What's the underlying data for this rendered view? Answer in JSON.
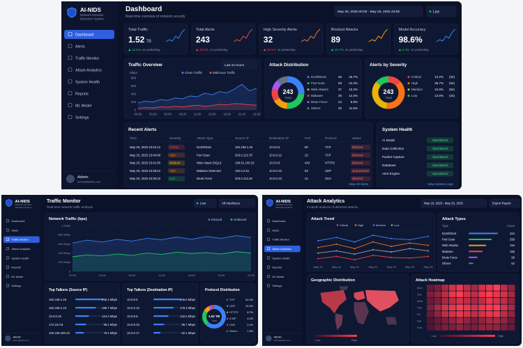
{
  "app": {
    "brand": "AI-NIDS",
    "brand_sub": [
      "Network Intrusion",
      "Detection System"
    ],
    "nav": [
      "Dashboard",
      "Alerts",
      "Traffic Monitor",
      "Attack Analytics",
      "System Health",
      "Reports",
      "ML Model",
      "Settings"
    ],
    "user": {
      "name": "Admin",
      "email": "admin@aitids.com"
    }
  },
  "dashboard": {
    "active_nav": 0,
    "title": "Dashboard",
    "subtitle": "Real-time overview of network security",
    "date_range": "May 25, 2025 00:00 - May 25, 2025 23:59",
    "live": "Live",
    "kpis": [
      {
        "label": "Total Traffic",
        "value": 1.52,
        "unit": "TB",
        "change": "12.5%",
        "note": "vs yesterday",
        "change_color": "#22c55e",
        "accent": "#3b82f6"
      },
      {
        "label": "Total Alerts",
        "value": 243,
        "change": "18.3%",
        "note": "vs yesterday",
        "change_color": "#ef4444",
        "accent": "#ef4444"
      },
      {
        "label": "High Severity Alerts",
        "value": 32,
        "change": "23.1%",
        "note": "vs yesterday",
        "change_color": "#ef4444",
        "accent": "#f97316"
      },
      {
        "label": "Blocked Attacks",
        "value": 89,
        "change": "15.7%",
        "note": "vs yesterday",
        "change_color": "#22c55e",
        "accent": "#f59e0b"
      },
      {
        "label": "Model Accuracy",
        "value": "98.6%",
        "change": "2.4%",
        "note": "vs yesterday",
        "change_color": "#22c55e",
        "accent": "#3b82f6"
      }
    ],
    "traffic_overview": {
      "title": "Traffic Overview",
      "range": "Last 24 Hours",
      "ylabel": "Mbps",
      "categories": [
        "00:00",
        null,
        "03:00",
        null,
        "06:00",
        null,
        "09:00",
        null,
        "12:00",
        null,
        "15:00",
        null,
        "18:00",
        null,
        "21:00",
        null,
        "23:59"
      ],
      "ylim": [
        0,
        800
      ],
      "yticks": [
        0,
        200,
        400,
        600,
        800
      ],
      "series": [
        {
          "name": "Clean Traffic",
          "color": "#3b82f6",
          "values": [
            180,
            220,
            200,
            260,
            240,
            300,
            280,
            350,
            330,
            420,
            380,
            460,
            430,
            520,
            640,
            480,
            540
          ]
        },
        {
          "name": "Malicious Traffic",
          "color": "#ef4444",
          "values": [
            40,
            60,
            50,
            80,
            70,
            90,
            75,
            100,
            120,
            90,
            110,
            140,
            130,
            160,
            150,
            130,
            120
          ]
        }
      ]
    },
    "attack_distribution": {
      "title": "Attack Distribution",
      "total": 243,
      "total_label": "Total",
      "labels": [
        "DoS/DDoS",
        "Port Scan",
        "Web Attacks",
        "Malware",
        "Brute Force",
        "Others"
      ],
      "values": [
        65,
        59,
        37,
        30,
        24,
        28
      ],
      "percent_labels": [
        "26.7%",
        "24.3%",
        "15.2%",
        "12.3%",
        "9.9%",
        "11.5%"
      ],
      "colors": [
        "#3b82f6",
        "#22c55e",
        "#f59e0b",
        "#ef4444",
        "#a855f7",
        "#64748b"
      ]
    },
    "alerts_by_severity": {
      "title": "Alerts by Severity",
      "total": 243,
      "total_label": "Total",
      "labels": [
        "Critical",
        "High",
        "Medium",
        "Low"
      ],
      "values": [
        32,
        94,
        84,
        33
      ],
      "value_labels": [
        "(32)",
        "(94)",
        "(84)",
        "(33)"
      ],
      "percent_labels": [
        "13.2%",
        "38.7%",
        "34.6%",
        "13.6%"
      ],
      "colors": [
        "#ef4444",
        "#f97316",
        "#eab308",
        "#22c55e"
      ]
    },
    "recent_alerts": {
      "title": "Recent Alerts",
      "columns": [
        "Time",
        "Severity",
        "Attack Type",
        "Source IP",
        "Destination IP",
        "Port",
        "Protocol",
        "Status"
      ],
      "rows": [
        [
          "May 25, 2025 23:42:12",
          "Critical",
          "DoS/DDoS",
          "192.168.1.45",
          "10.0.0.5",
          "80",
          "TCP",
          "Blocked"
        ],
        [
          "May 25, 2025 23:40:08",
          "High",
          "Port Scan",
          "203.0.113.78",
          "10.0.0.12",
          "22",
          "TCP",
          "Blocked"
        ],
        [
          "May 25, 2025 23:41:05",
          "Medium",
          "Web Attack (SQLi)",
          "198.51.100.23",
          "10.0.0.8",
          "443",
          "HTTPS",
          "Blocked"
        ],
        [
          "May 25, 2025 23:38:22",
          "High",
          "Malware Detected",
          "192.0.2.61",
          "10.0.0.15",
          "53",
          "UDP",
          "Quarantined"
        ],
        [
          "May 25, 2025 23:35:10",
          "Low",
          "Brute Force",
          "203.0.113.45",
          "10.0.0.23",
          "22",
          "SSH",
          "Blocked"
        ]
      ],
      "severity_colors": [
        "#ef4444",
        "#f97316",
        "#eab308",
        "#f97316",
        "#22c55e"
      ],
      "link": "View All Alerts"
    },
    "system_health": {
      "title": "System Health",
      "rows": [
        [
          "AI Model",
          "Operational"
        ],
        [
          "Data Collection",
          "Operational"
        ],
        [
          "Packet Capture",
          "Operational"
        ],
        [
          "Database",
          "Operational"
        ],
        [
          "Alert Engine",
          "Operational"
        ]
      ],
      "link": "View System Logs"
    }
  },
  "traffic_monitor": {
    "active_nav": 2,
    "title": "Traffic Monitor",
    "subtitle": "Real-time network traffic analysis",
    "live": "Live",
    "interfaces": "All Interfaces",
    "network_traffic": {
      "title": "Network Traffic (bps)",
      "categories": [
        "00:00",
        null,
        "04:00",
        null,
        "08:00",
        null,
        "12:00",
        null,
        "16:00",
        null,
        "20:00",
        null,
        "23:59"
      ],
      "ylim": [
        0,
        1000
      ],
      "yticks": [
        0,
        {
          "value": 200,
          "label": "200 Mbps"
        },
        {
          "value": 400,
          "label": "400 Mbps"
        },
        {
          "value": 600,
          "label": "600 Mbps"
        },
        {
          "value": 800,
          "label": "800 Mbps"
        },
        {
          "value": 1000,
          "label": "1 Gbps"
        }
      ],
      "series": [
        {
          "name": "Inbound",
          "color": "#3b82f6",
          "values": [
            620,
            680,
            640,
            700,
            660,
            720,
            690,
            750,
            700,
            760,
            720,
            780,
            740
          ]
        },
        {
          "name": "Outbound",
          "color": "#22c55e",
          "values": [
            320,
            360,
            340,
            380,
            350,
            400,
            370,
            420,
            390,
            410,
            380,
            430,
            400
          ]
        }
      ]
    },
    "top_sources": {
      "title": "Top Talkers (Source IP)",
      "rows": [
        {
          "ip": "192.168.1.45",
          "value": 256.4,
          "label": "256.4 Mbps"
        },
        {
          "ip": "192.168.1.23",
          "value": 189.7,
          "label": "189.7 Mbps"
        },
        {
          "ip": "10.0.0.15",
          "value": 124.3,
          "label": "124.3 Mbps"
        },
        {
          "ip": "172.16.0.8",
          "value": 98.2,
          "label": "98.2 Mbps"
        },
        {
          "ip": "192.168.100.23",
          "value": 78.4,
          "label": "78.4 Mbps"
        }
      ]
    },
    "top_destinations": {
      "title": "Top Talkers (Destination IP)",
      "rows": [
        {
          "ip": "10.0.0.5",
          "value": 245.8,
          "label": "245.8 Mbps"
        },
        {
          "ip": "10.0.0.12",
          "value": 178.3,
          "label": "178.3 Mbps"
        },
        {
          "ip": "10.0.0.8",
          "value": 132.5,
          "label": "132.5 Mbps"
        },
        {
          "ip": "10.0.0.23",
          "value": 95.7,
          "label": "95.7 Mbps"
        },
        {
          "ip": "10.0.0.17",
          "value": 62.1,
          "label": "62.1 Mbps"
        }
      ]
    },
    "protocols": {
      "title": "Protocol Distribution",
      "total": "1.52 TB",
      "total_label": "Total",
      "labels": [
        "TCP",
        "UDP",
        "HTTPS",
        "ICMP",
        "DNS",
        "Others"
      ],
      "values": [
        62.3,
        21.4,
        8.7,
        4.2,
        2.1,
        1.3
      ],
      "value_labels": [
        "62.3%",
        "21.4%",
        "8.7%",
        "4.2%",
        "2.1%",
        "1.3%"
      ],
      "colors": [
        "#3b82f6",
        "#22c55e",
        "#f59e0b",
        "#a855f7",
        "#ef4444",
        "#64748b"
      ]
    }
  },
  "attack_analytics": {
    "active_nav": 3,
    "title": "Attack Analytics",
    "subtitle": "In-depth analysis of detected attacks",
    "date_range": "May 18, 2025 - May 25, 2025",
    "export": "Export Report",
    "trend": {
      "title": "Attack Trend",
      "categories": [
        "May 19",
        "May 20",
        "May 21",
        "May 22",
        "May 23",
        "May 24",
        "May 25"
      ],
      "ylim": [
        0,
        60
      ],
      "series": [
        {
          "name": "Critical",
          "color": "#ef4444",
          "values": [
            8,
            12,
            6,
            14,
            10,
            9,
            12
          ]
        },
        {
          "name": "High",
          "color": "#f97316",
          "values": [
            28,
            34,
            26,
            38,
            30,
            36,
            32
          ]
        },
        {
          "name": "Medium",
          "color": "#3b82f6",
          "values": [
            40,
            46,
            38,
            50,
            44,
            42,
            48
          ]
        },
        {
          "name": "Low",
          "color": "#a3a3a3",
          "values": [
            18,
            22,
            16,
            24,
            20,
            26,
            22
          ]
        }
      ]
    },
    "types": {
      "title": "Attack Types",
      "columns": [
        "Type",
        "Count"
      ],
      "labels": [
        "DoS/DDoS",
        "Port Scan",
        "Web Attacks",
        "Malware",
        "Brute Force",
        "Others"
      ],
      "values": [
        324,
        256,
        194,
        156,
        98,
        52
      ],
      "colors": [
        "#3b82f6",
        "#22c55e",
        "#f59e0b",
        "#ef4444",
        "#a855f7",
        "#64748b"
      ]
    },
    "geo": {
      "title": "Geographic Distribution",
      "low": "Low",
      "high": "High"
    },
    "heatmap": {
      "title": "Attack Heatmap",
      "days": [
        "Mon",
        "Tue",
        "Wed",
        "Thu",
        "Fri",
        "Sat",
        "Sun"
      ],
      "low": "Low",
      "high": "High",
      "values": [
        [
          2,
          3,
          5,
          7,
          8,
          6,
          5,
          7,
          8,
          9,
          6,
          4
        ],
        [
          3,
          4,
          6,
          8,
          9,
          7,
          6,
          8,
          9,
          8,
          7,
          5
        ],
        [
          2,
          3,
          5,
          6,
          7,
          6,
          5,
          6,
          8,
          7,
          6,
          4
        ],
        [
          3,
          5,
          7,
          8,
          9,
          8,
          7,
          8,
          9,
          9,
          7,
          5
        ],
        [
          2,
          4,
          6,
          7,
          8,
          7,
          6,
          7,
          8,
          8,
          6,
          4
        ],
        [
          1,
          2,
          3,
          4,
          5,
          4,
          3,
          4,
          5,
          5,
          4,
          2
        ],
        [
          1,
          2,
          3,
          3,
          4,
          3,
          3,
          4,
          4,
          4,
          3,
          2
        ]
      ]
    }
  }
}
